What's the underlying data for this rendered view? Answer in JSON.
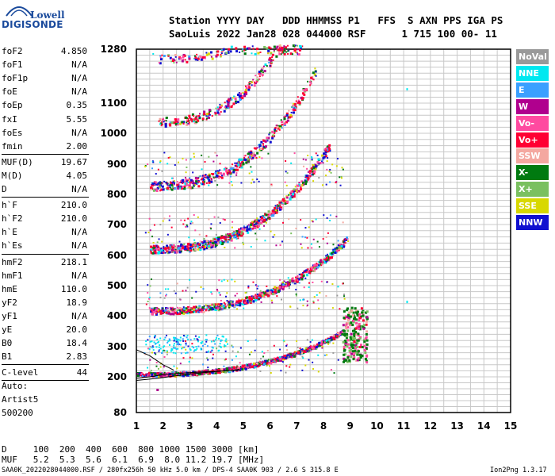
{
  "logo": {
    "top": "Lowell",
    "bottom": "DIGISONDE"
  },
  "header": {
    "line1": "Station YYYY DAY   DDD HHMMSS P1   FFS  S AXN PPS IGA PS",
    "line2": "SaoLuis 2022 Jan28 028 044000 RSF      1 715 100 00- 11"
  },
  "params": [
    {
      "name": "foF2",
      "value": "4.850"
    },
    {
      "name": "foF1",
      "value": "N/A"
    },
    {
      "name": "foF1p",
      "value": "N/A"
    },
    {
      "name": "foE",
      "value": "N/A"
    },
    {
      "name": "foEp",
      "value": "0.35"
    },
    {
      "name": "fxI",
      "value": "5.55"
    },
    {
      "name": "foEs",
      "value": "N/A"
    },
    {
      "name": "fmin",
      "value": "2.00"
    },
    {
      "name": "MUF(D)",
      "value": "19.67"
    },
    {
      "name": "M(D)",
      "value": "4.05"
    },
    {
      "name": "D",
      "value": "N/A"
    },
    {
      "name": "h`F",
      "value": "210.0"
    },
    {
      "name": "h`F2",
      "value": "210.0"
    },
    {
      "name": "h`E",
      "value": "N/A"
    },
    {
      "name": "h`Es",
      "value": "N/A"
    },
    {
      "name": "hmF2",
      "value": "218.1"
    },
    {
      "name": "hmF1",
      "value": "N/A"
    },
    {
      "name": "hmE",
      "value": "110.0"
    },
    {
      "name": "yF2",
      "value": "18.9"
    },
    {
      "name": "yF1",
      "value": "N/A"
    },
    {
      "name": "yE",
      "value": "20.0"
    },
    {
      "name": "B0",
      "value": "18.4"
    },
    {
      "name": "B1",
      "value": "2.83"
    },
    {
      "name": "C-level",
      "value": "44"
    }
  ],
  "auto": {
    "line1": "Auto:",
    "line2": "Artist5",
    "line3": "500200"
  },
  "legend": [
    {
      "label": "NoVal",
      "color": "#999999"
    },
    {
      "label": "NNE",
      "color": "#00e8f0"
    },
    {
      "label": "E",
      "color": "#3aa0ff"
    },
    {
      "label": "W",
      "color": "#b0008e"
    },
    {
      "label": "Vo-",
      "color": "#ff4aa0"
    },
    {
      "label": "Vo+",
      "color": "#ff0033"
    },
    {
      "label": "SSW",
      "color": "#f4a8a0"
    },
    {
      "label": "X-",
      "color": "#007a10"
    },
    {
      "label": "X+",
      "color": "#7ac060"
    },
    {
      "label": "SSE",
      "color": "#d8d800"
    },
    {
      "label": "NNW",
      "color": "#1010d0"
    }
  ],
  "axes": {
    "y_ticks": [
      "1280",
      "1100",
      "1000",
      "900",
      "800",
      "700",
      "600",
      "500",
      "400",
      "300",
      "200",
      "80"
    ],
    "x_ticks": [
      "1",
      "2",
      "3",
      "4",
      "5",
      "6",
      "7",
      "8",
      "9",
      "10",
      "11",
      "12",
      "13",
      "14",
      "15"
    ]
  },
  "bottom": {
    "d_row": "D     100  200  400  600  800 1000 1500 3000 [km]",
    "muf_row": "MUF   5.2  5.3  5.6  6.1  6.9  8.0 11.2 19.7 [MHz]"
  },
  "footer": {
    "left": "SAA0K_2022028044000.RSF / 280fx256h 50 kHz 5.0 km / DPS-4 SAA0K 903 / 2.6 S 315.8 E",
    "right": "Ion2Png 1.3.17"
  }
}
